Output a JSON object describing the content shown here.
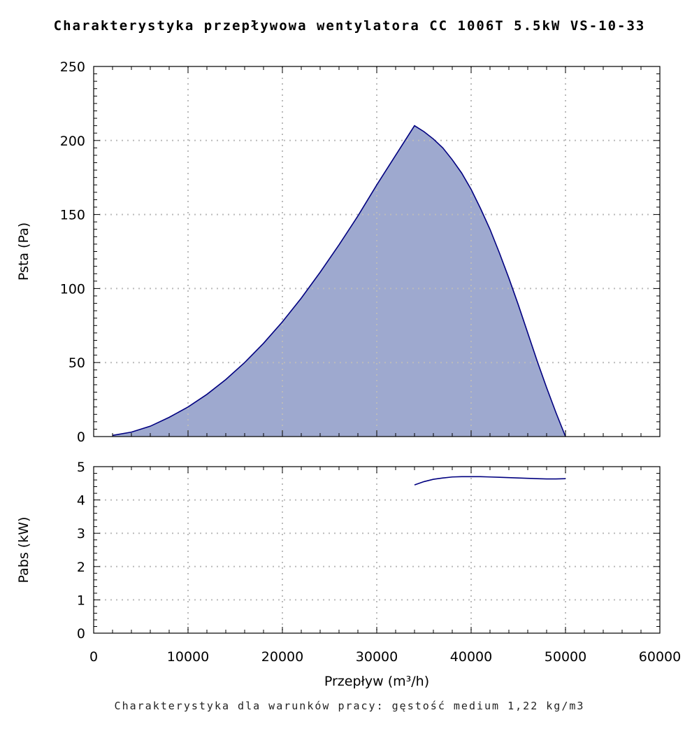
{
  "title": "Charakterystyka przepływowa wentylatora CC 1006T 5.5kW VS-10-33",
  "footnote": "Charakterystyka dla warunków pracy: gęstość medium 1,22 kg/m3",
  "colors": {
    "curve": "#000080",
    "fill": "#9ea9cf",
    "grid": "#bbbbbb"
  },
  "chart_data": [
    {
      "type": "area",
      "ylabel": "Psta (Pa)",
      "xlim": [
        0,
        60000
      ],
      "ylim": [
        0,
        250
      ],
      "grid": true,
      "x_ticks": [
        0,
        10000,
        20000,
        30000,
        40000,
        50000,
        60000
      ],
      "y_ticks": [
        0,
        50,
        100,
        150,
        200,
        250
      ],
      "series": [
        {
          "x": [
            2000,
            4000,
            6000,
            8000,
            10000,
            12000,
            14000,
            16000,
            18000,
            20000,
            22000,
            24000,
            26000,
            28000,
            30000,
            32000,
            34000,
            35000,
            36000,
            37000,
            38000,
            39000,
            40000,
            41000,
            42000,
            43000,
            44000,
            45000,
            46000,
            47000,
            48000,
            49000,
            50000
          ],
          "y": [
            0.8,
            3,
            7,
            13,
            20,
            28.5,
            38.5,
            50,
            63,
            77.5,
            93.5,
            111,
            129.5,
            149,
            170,
            190,
            210,
            206,
            201,
            195,
            187,
            178,
            167,
            154,
            140,
            124,
            107,
            89,
            70,
            51,
            33,
            16,
            0
          ]
        }
      ]
    },
    {
      "type": "line",
      "xlabel": "Przepływ (m³/h)",
      "ylabel": "Pabs (kW)",
      "xlim": [
        0,
        60000
      ],
      "ylim": [
        0,
        5
      ],
      "grid": true,
      "x_ticks": [
        0,
        10000,
        20000,
        30000,
        40000,
        50000,
        60000
      ],
      "y_ticks": [
        0,
        1,
        2,
        3,
        4,
        5
      ],
      "series": [
        {
          "x": [
            34000,
            35000,
            36000,
            37000,
            38000,
            39000,
            40000,
            41000,
            42000,
            43000,
            44000,
            45000,
            46000,
            47000,
            48000,
            49000,
            50000
          ],
          "y": [
            4.45,
            4.55,
            4.62,
            4.66,
            4.69,
            4.7,
            4.7,
            4.7,
            4.69,
            4.68,
            4.67,
            4.66,
            4.65,
            4.64,
            4.63,
            4.63,
            4.64
          ]
        }
      ]
    }
  ]
}
